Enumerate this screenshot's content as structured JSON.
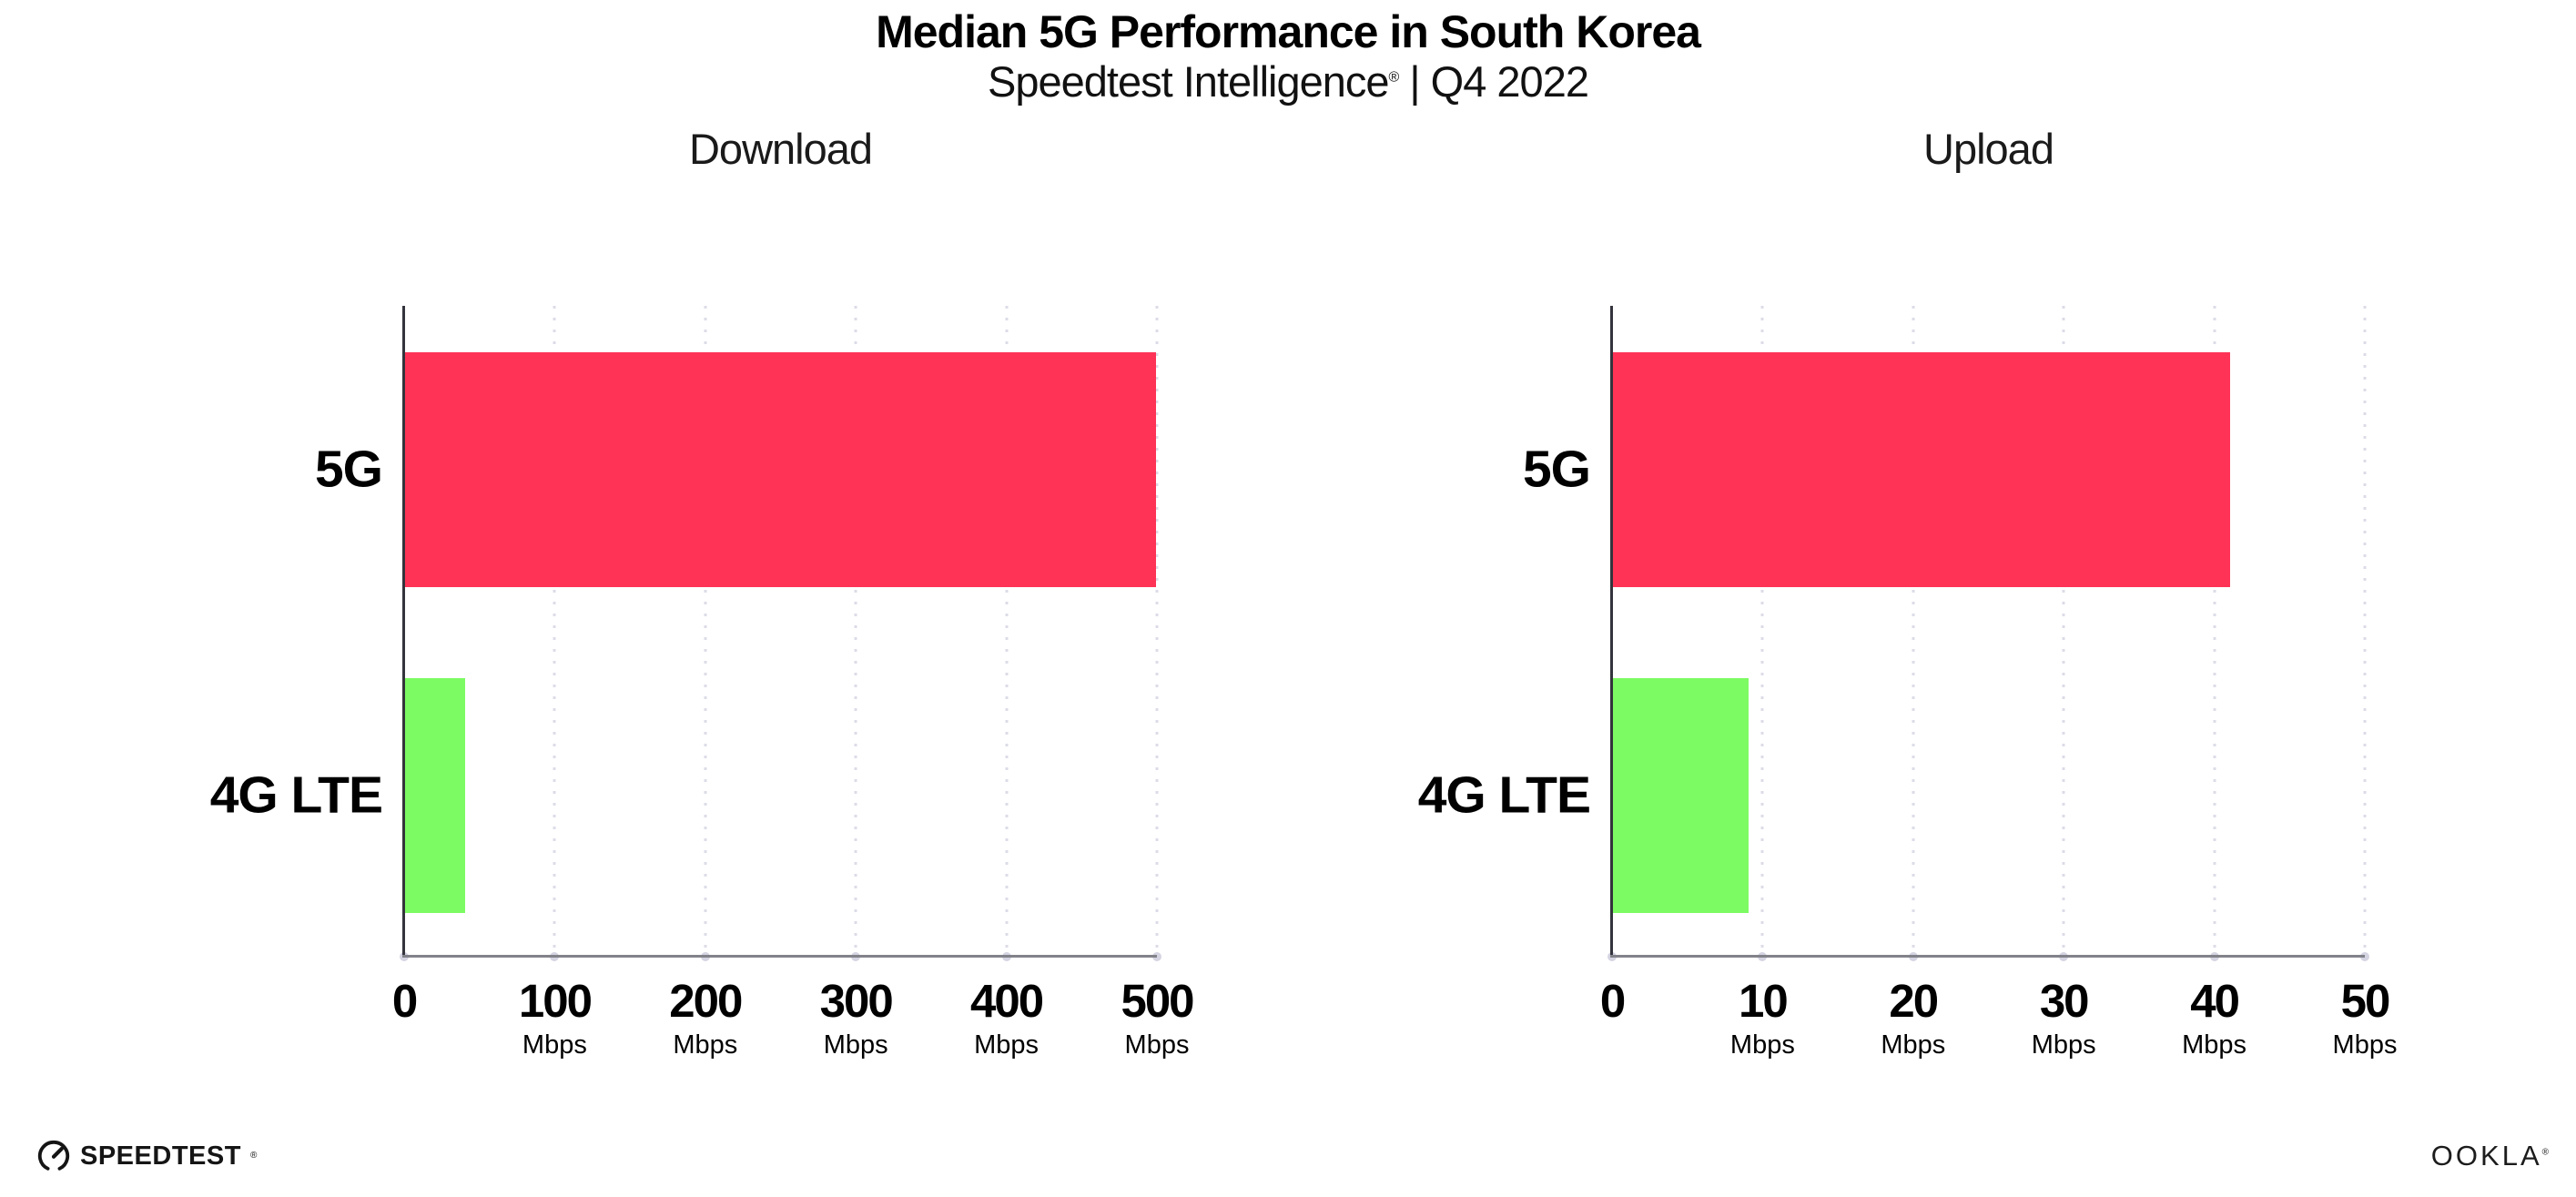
{
  "header": {
    "title": "Median 5G Performance in South Korea",
    "subtitle_brand": "Speedtest Intelligence",
    "subtitle_reg": "®",
    "subtitle_sep": " | ",
    "subtitle_period": "Q4 2022"
  },
  "colors": {
    "bar_5g": "#FF3356",
    "bar_4g": "#7DFB62",
    "grid": "#DCDCE8",
    "axis_x": "#82828A",
    "axis_y": "#33343C",
    "tick_dot": "#D4D4E2",
    "text": "#0D0D0D"
  },
  "chart_data": [
    {
      "type": "bar",
      "orientation": "horizontal",
      "title": "Download",
      "categories": [
        "5G",
        "4G LTE"
      ],
      "values": [
        499,
        40
      ],
      "unit": "Mbps",
      "xlabel": "",
      "ylabel": "",
      "xlim": [
        0,
        500
      ],
      "xticks": [
        0,
        100,
        200,
        300,
        400,
        500
      ],
      "series_colors": [
        "bar_5g",
        "bar_4g"
      ],
      "grid": "vertical-dotted",
      "legend": "none"
    },
    {
      "type": "bar",
      "orientation": "horizontal",
      "title": "Upload",
      "categories": [
        "5G",
        "4G LTE"
      ],
      "values": [
        41,
        9
      ],
      "unit": "Mbps",
      "xlabel": "",
      "ylabel": "",
      "xlim": [
        0,
        50
      ],
      "xticks": [
        0,
        10,
        20,
        30,
        40,
        50
      ],
      "series_colors": [
        "bar_5g",
        "bar_4g"
      ],
      "grid": "vertical-dotted",
      "legend": "none"
    }
  ],
  "footer": {
    "speedtest_label": "SPEEDTEST",
    "speedtest_reg": "®",
    "ookla_label": "OOKLA",
    "ookla_reg": "®"
  }
}
